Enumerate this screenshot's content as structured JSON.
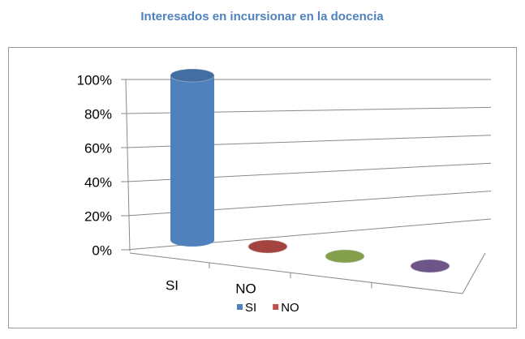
{
  "chart_data": {
    "type": "bar",
    "title": "Interesados en incursionar en la docencia",
    "categories": [
      "SI",
      "NO",
      null,
      null
    ],
    "values": [
      100,
      0,
      0,
      0
    ],
    "colors": [
      "#4f81bd",
      "#c0504d",
      "#9bbb59",
      "#8064a2"
    ],
    "ylim": [
      0,
      100
    ],
    "yticks": [
      {
        "value": 0,
        "label": "0%"
      },
      {
        "value": 20,
        "label": "20%"
      },
      {
        "value": 40,
        "label": "40%"
      },
      {
        "value": 60,
        "label": "60%"
      },
      {
        "value": 80,
        "label": "80%"
      },
      {
        "value": 100,
        "label": "100%"
      }
    ],
    "grid": true,
    "legend": "bottom"
  }
}
